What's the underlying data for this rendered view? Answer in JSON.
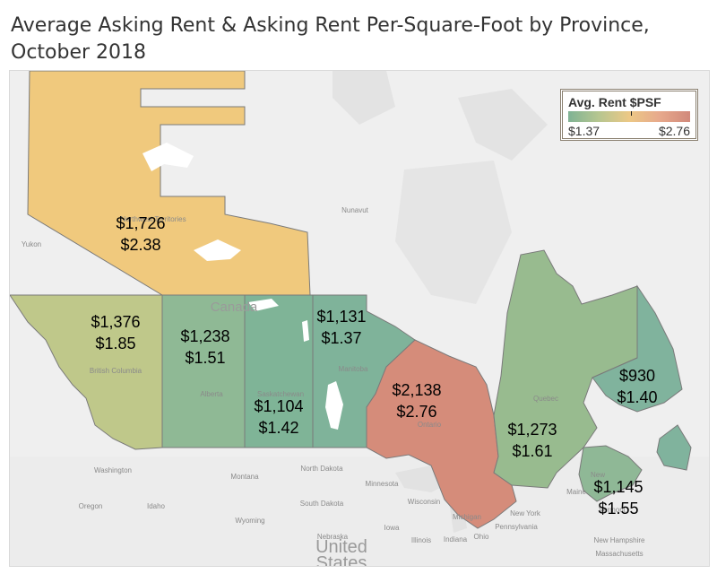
{
  "title": "Average Asking Rent & Asking Rent Per-Square-Foot by Province, October 2018",
  "legend": {
    "title": "Avg. Rent $PSF",
    "min_label": "$1.37",
    "max_label": "$2.76",
    "colors": [
      "#7fb394",
      "#ecc886",
      "#d1897b"
    ]
  },
  "regions": [
    {
      "key": "nwt",
      "rent": "$1,726",
      "psf": "$2.38",
      "color": "#f0c97d"
    },
    {
      "key": "bc",
      "rent": "$1,376",
      "psf": "$1.85",
      "color": "#bfc88a"
    },
    {
      "key": "alberta",
      "rent": "$1,238",
      "psf": "$1.51",
      "color": "#8fb995"
    },
    {
      "key": "saskatchewan",
      "rent": "$1,104",
      "psf": "$1.42",
      "color": "#7fb497"
    },
    {
      "key": "manitoba",
      "rent": "$1,131",
      "psf": "$1.37",
      "color": "#7fb39a"
    },
    {
      "key": "ontario",
      "rent": "$2,138",
      "psf": "$2.76",
      "color": "#d58c7a"
    },
    {
      "key": "quebec",
      "rent": "$1,273",
      "psf": "$1.61",
      "color": "#98bb8f"
    },
    {
      "key": "newfoundland",
      "rent": "$930",
      "psf": "$1.40",
      "color": "#80b39d"
    },
    {
      "key": "maritimes",
      "rent": "$1,145",
      "psf": "$1.55",
      "color": "#8fb896"
    }
  ],
  "basemap_labels": {
    "canada": "Canada",
    "yukon": "Yukon",
    "nunavut": "Nunavut",
    "northwest_territories": "Northwest Territories",
    "british_columbia": "British Columbia",
    "alberta": "Alberta",
    "saskatchewan": "Saskatchewan",
    "manitoba": "Manitoba",
    "ontario": "Ontario",
    "quebec": "Quebec",
    "washington": "Washington",
    "oregon": "Oregon",
    "idaho": "Idaho",
    "montana": "Montana",
    "wyoming": "Wyoming",
    "north_dakota": "North Dakota",
    "south_dakota": "South Dakota",
    "nebraska": "Nebraska",
    "minnesota": "Minnesota",
    "iowa": "Iowa",
    "wisconsin": "Wisconsin",
    "michigan": "Michigan",
    "illinois": "Illinois",
    "indiana": "Indiana",
    "ohio": "Ohio",
    "new_york": "New York",
    "pennsylvania": "Pennsylvania",
    "vermont": "Vermont",
    "new_hampshire": "New Hampshire",
    "massachusetts": "Massachusetts",
    "maine": "Maine",
    "new_brunswick": "New",
    "united_states_1": "United",
    "united_states_2": "States"
  }
}
